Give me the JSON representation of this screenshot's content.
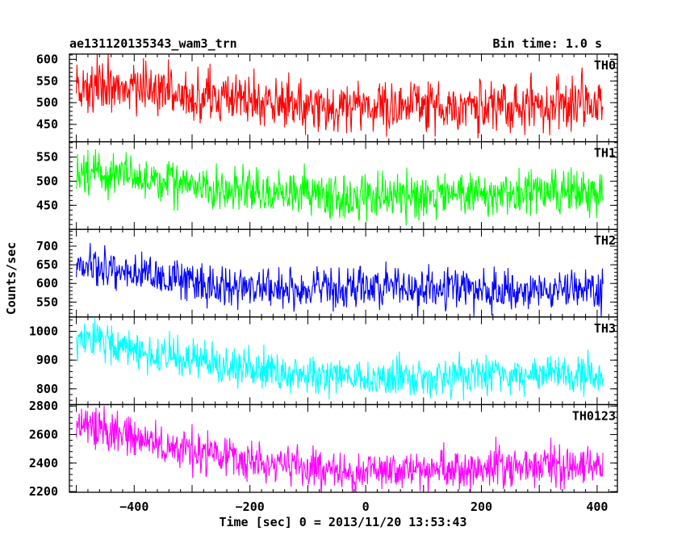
{
  "header": {
    "title": "ae131120135343_wam3_trn",
    "bin_time": "Bin time: 1.0 s"
  },
  "chart_data": {
    "type": "line",
    "xlabel": "Time [sec] 0 = 2013/11/20 13:53:43",
    "ylabel": "Counts/sec",
    "xlim": [
      -512,
      435
    ],
    "x_range": [
      -500,
      410
    ],
    "bin": 1.0,
    "x_ticks": [
      -400,
      -200,
      0,
      200,
      400
    ],
    "panels": [
      {
        "name": "TH0",
        "color": "#ff0000",
        "ylim": [
          410,
          612
        ],
        "y_ticks": [
          450,
          500,
          550,
          600
        ],
        "trend_x": [
          -500,
          -400,
          -300,
          -200,
          -100,
          0,
          100,
          200,
          300,
          410
        ],
        "trend_y": [
          545,
          535,
          515,
          505,
          495,
          490,
          490,
          495,
          495,
          492
        ],
        "noise": 30
      },
      {
        "name": "TH1",
        "color": "#00ff00",
        "ylim": [
          400,
          582
        ],
        "y_ticks": [
          450,
          500,
          550
        ],
        "trend_x": [
          -500,
          -400,
          -300,
          -200,
          -100,
          0,
          100,
          200,
          300,
          410
        ],
        "trend_y": [
          520,
          508,
          490,
          478,
          470,
          465,
          468,
          475,
          478,
          475
        ],
        "noise": 24
      },
      {
        "name": "TH2",
        "color": "#0000ff",
        "ylim": [
          510,
          745
        ],
        "y_ticks": [
          550,
          600,
          650,
          700
        ],
        "trend_x": [
          -500,
          -400,
          -300,
          -200,
          -100,
          0,
          100,
          200,
          300,
          410
        ],
        "trend_y": [
          650,
          630,
          605,
          590,
          585,
          585,
          585,
          585,
          585,
          580
        ],
        "noise": 27
      },
      {
        "name": "TH3",
        "color": "#00ffff",
        "ylim": [
          745,
          1050
        ],
        "y_ticks": [
          800,
          900,
          1000
        ],
        "trend_x": [
          -500,
          -400,
          -300,
          -200,
          -100,
          0,
          100,
          200,
          300,
          410
        ],
        "trend_y": [
          980,
          935,
          900,
          870,
          845,
          835,
          840,
          845,
          850,
          845
        ],
        "noise": 33
      },
      {
        "name": "TH0123",
        "color": "#ff00ff",
        "ylim": [
          2195,
          2810
        ],
        "y_ticks": [
          2200,
          2400,
          2600,
          2800
        ],
        "trend_x": [
          -500,
          -400,
          -300,
          -200,
          -100,
          0,
          100,
          200,
          300,
          410
        ],
        "trend_y": [
          2680,
          2590,
          2490,
          2420,
          2360,
          2340,
          2350,
          2370,
          2380,
          2370
        ],
        "noise": 72
      }
    ]
  }
}
